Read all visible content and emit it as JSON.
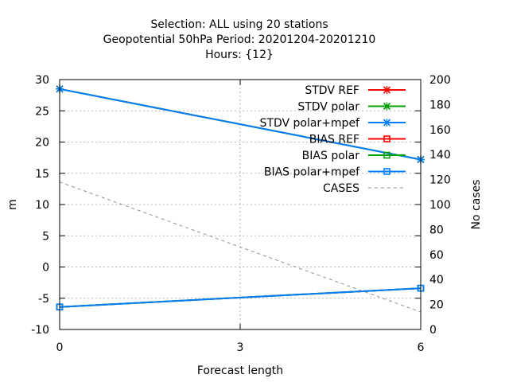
{
  "chart_data": {
    "type": "line",
    "title_lines": [
      "Selection: ALL using    20 stations",
      "Geopotential 50hPa   Period: 20201204-20201210",
      "Hours: {12}"
    ],
    "xlabel": "Forecast length",
    "ylabel": "m",
    "y2label": "No cases",
    "x": [
      0,
      6
    ],
    "xticks": [
      0,
      3,
      6
    ],
    "xlim": [
      0,
      6
    ],
    "ylim": [
      -10,
      30
    ],
    "yticks": [
      -10,
      -5,
      0,
      5,
      10,
      15,
      20,
      25,
      30
    ],
    "y2lim": [
      0,
      200
    ],
    "y2ticks": [
      0,
      20,
      40,
      60,
      80,
      100,
      120,
      140,
      160,
      180,
      200
    ],
    "grid": true,
    "legend_position": "top-right",
    "series": [
      {
        "name": "STDV REF",
        "axis": "y",
        "values": [
          28.5,
          17.2
        ],
        "color": "#ff0000",
        "marker": "x",
        "dash": false
      },
      {
        "name": "STDV polar",
        "axis": "y",
        "values": [
          28.5,
          17.2
        ],
        "color": "#00a000",
        "marker": "x",
        "dash": false
      },
      {
        "name": "STDV polar+mpef",
        "axis": "y",
        "values": [
          28.5,
          17.2
        ],
        "color": "#0080ff",
        "marker": "x",
        "dash": false
      },
      {
        "name": "BIAS REF",
        "axis": "y",
        "values": [
          -6.4,
          -3.4
        ],
        "color": "#ff0000",
        "marker": "square",
        "dash": false
      },
      {
        "name": "BIAS polar",
        "axis": "y",
        "values": [
          -6.4,
          -3.4
        ],
        "color": "#00a000",
        "marker": "square",
        "dash": false
      },
      {
        "name": "BIAS polar+mpef",
        "axis": "y",
        "values": [
          -6.4,
          -3.4
        ],
        "color": "#0080ff",
        "marker": "square",
        "dash": false
      },
      {
        "name": "CASES",
        "axis": "y2",
        "values": [
          118,
          14
        ],
        "color": "#909090",
        "marker": "none",
        "dash": true
      }
    ]
  }
}
